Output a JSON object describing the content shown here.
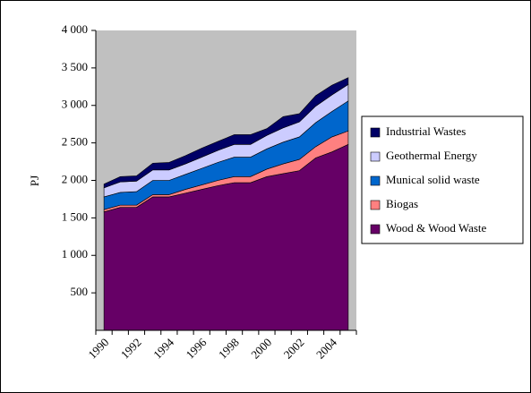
{
  "chart_data": {
    "type": "stacked-area",
    "y_label": "PJ",
    "categories": [
      "1990",
      null,
      "1992",
      null,
      "1994",
      null,
      "1996",
      null,
      "1998",
      null,
      "2000",
      null,
      "2002",
      null,
      "2004",
      null
    ],
    "series": [
      {
        "name": "Wood & Wood Waste",
        "color": "#660066",
        "values": [
          1580,
          1640,
          1640,
          1780,
          1780,
          1830,
          1880,
          1930,
          1970,
          1970,
          2050,
          2090,
          2130,
          2300,
          2380,
          2480
        ]
      },
      {
        "name": "Biogas",
        "color": "#ff8080",
        "values": [
          30,
          30,
          30,
          30,
          30,
          50,
          60,
          70,
          80,
          80,
          100,
          130,
          150,
          150,
          200,
          180
        ]
      },
      {
        "name": "Munical solid waste",
        "color": "#0066cc",
        "values": [
          170,
          170,
          180,
          190,
          190,
          200,
          220,
          240,
          260,
          260,
          270,
          290,
          300,
          320,
          340,
          400
        ]
      },
      {
        "name": "Geothermal Energy",
        "color": "#ccccff",
        "values": [
          120,
          140,
          140,
          140,
          140,
          140,
          150,
          160,
          170,
          170,
          180,
          190,
          200,
          220,
          220,
          220
        ]
      },
      {
        "name": "Industrial Wastes",
        "color": "#000066",
        "values": [
          50,
          70,
          70,
          90,
          100,
          110,
          120,
          120,
          130,
          130,
          90,
          150,
          110,
          140,
          130,
          90
        ]
      }
    ],
    "ylim": [
      0,
      4000
    ],
    "yticks": [
      500,
      {
        "value": 1000,
        "label": "1 000"
      },
      {
        "value": 1500,
        "label": "1 500"
      },
      {
        "value": 2000,
        "label": "2 000"
      },
      {
        "value": 2500,
        "label": "2 500"
      },
      {
        "value": 3000,
        "label": "3 000"
      },
      {
        "value": 3500,
        "label": "3 500"
      },
      {
        "value": 4000,
        "label": "4 000"
      }
    ],
    "legend": "right"
  }
}
